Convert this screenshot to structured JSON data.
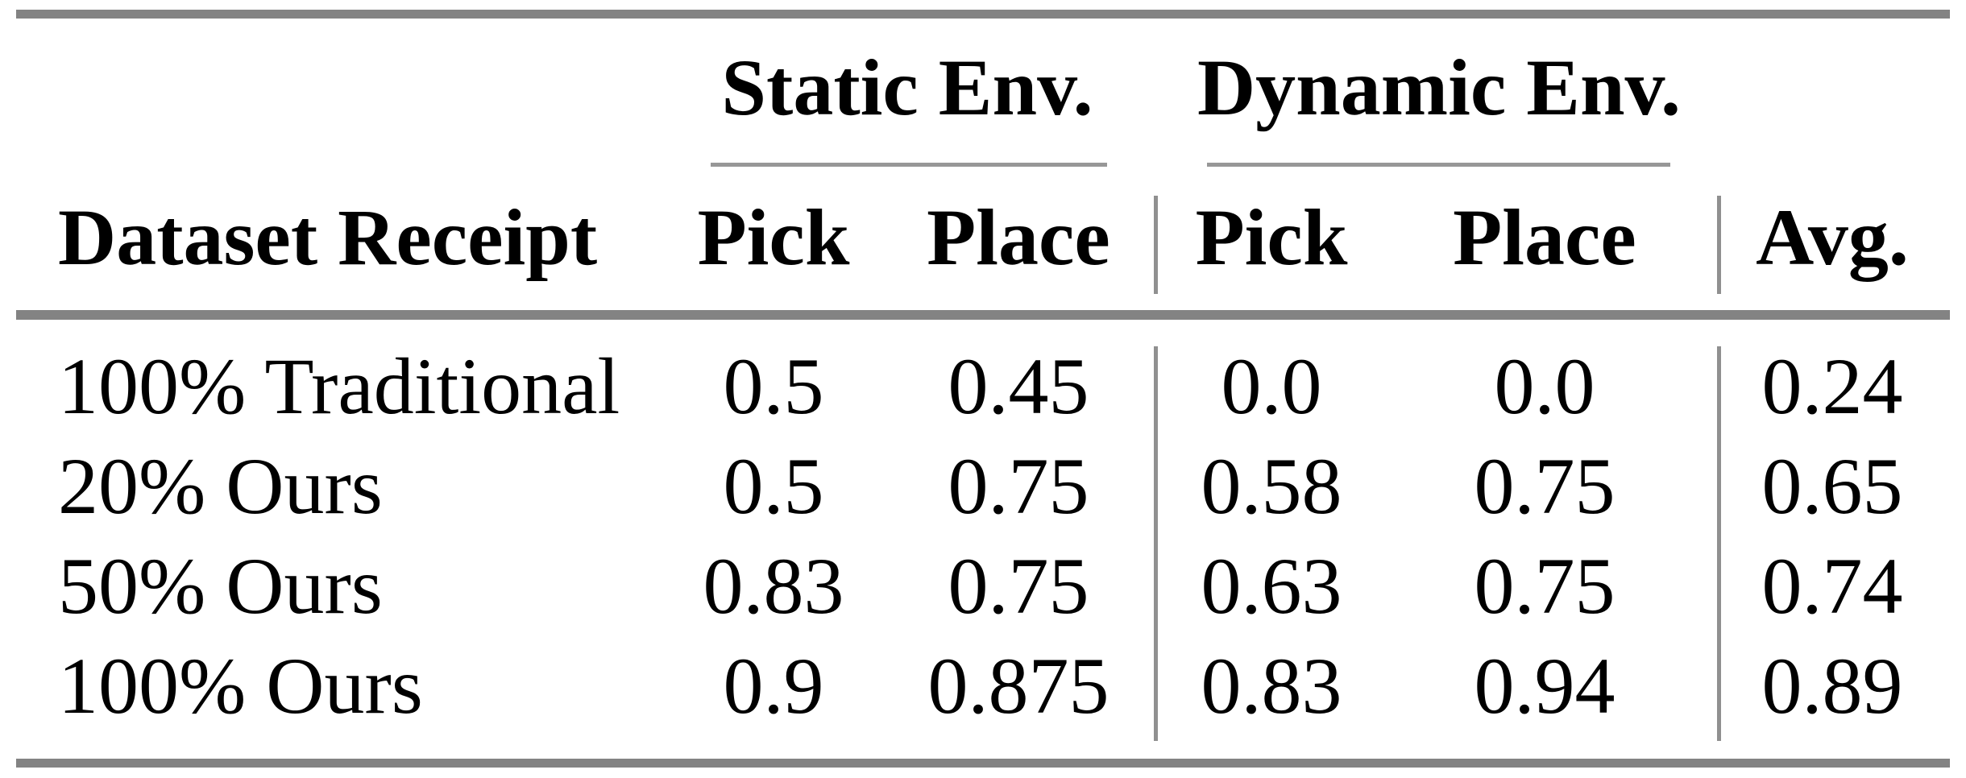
{
  "colors": {
    "background": "#ffffff",
    "text": "#000000",
    "rule_thick_gray": "#838383",
    "rule_thin_gray": "#979797",
    "separator_gray": "#909090"
  },
  "table": {
    "corner_header": "Dataset Receipt",
    "groups": {
      "static": {
        "label": "Static Env."
      },
      "dynamic": {
        "label": "Dynamic Env."
      }
    },
    "sub_headers": {
      "static_pick": "Pick",
      "static_place": "Place",
      "dynamic_pick": "Pick",
      "dynamic_place": "Place",
      "avg": "Avg."
    },
    "rows": [
      {
        "label": "100% Traditional",
        "static_pick": "0.5",
        "static_place": "0.45",
        "dynamic_pick": "0.0",
        "dynamic_place": "0.0",
        "avg": "0.24"
      },
      {
        "label": "20% Ours",
        "static_pick": "0.5",
        "static_place": "0.75",
        "dynamic_pick": "0.58",
        "dynamic_place": "0.75",
        "avg": "0.65"
      },
      {
        "label": "50% Ours",
        "static_pick": "0.83",
        "static_place": "0.75",
        "dynamic_pick": "0.63",
        "dynamic_place": "0.75",
        "avg": "0.74"
      },
      {
        "label": "100% Ours",
        "static_pick": "0.9",
        "static_place": "0.875",
        "dynamic_pick": "0.83",
        "dynamic_place": "0.94",
        "avg": "0.89"
      }
    ]
  }
}
